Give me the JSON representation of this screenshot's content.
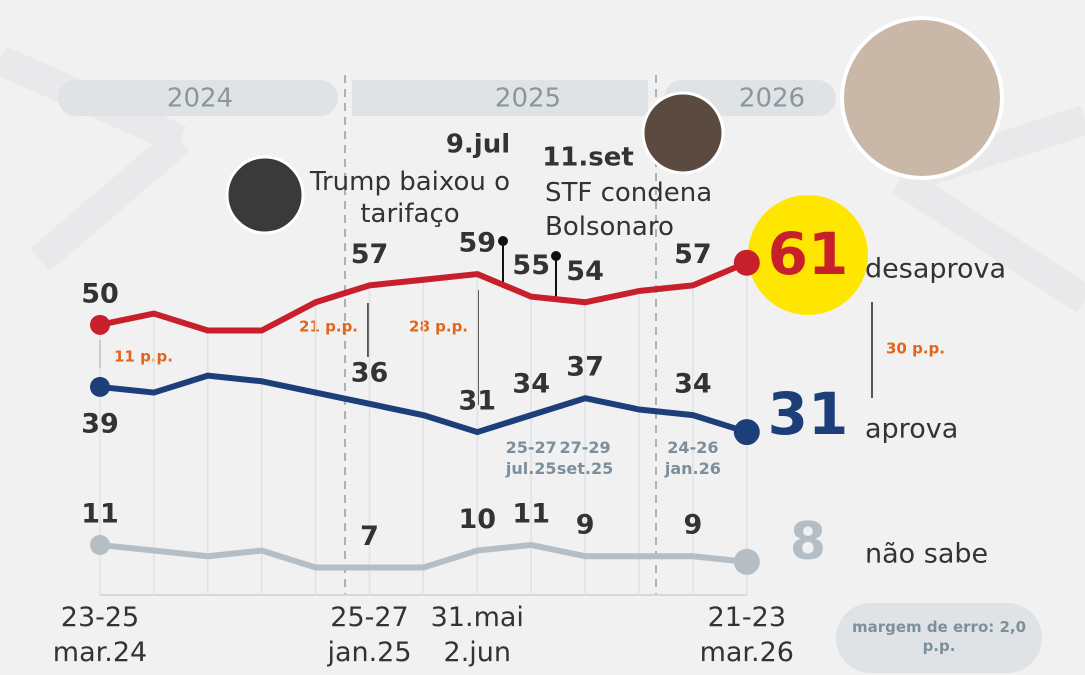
{
  "chart_data": {
    "type": "line",
    "categories": [
      "23-25 mar.24",
      null,
      null,
      null,
      null,
      "25-27 jan.25",
      null,
      "31.mai 2.jun",
      "25-27 jul.25",
      "27-29 set.25",
      null,
      "24-26 jan.26",
      "21-23 mar.26"
    ],
    "series": [
      {
        "name": "desaprova",
        "color": "#c8202a",
        "values": [
          50,
          52,
          49,
          49,
          54,
          57,
          58,
          59,
          55,
          54,
          56,
          57,
          61
        ]
      },
      {
        "name": "aprova",
        "color": "#1c3f7a",
        "values": [
          39,
          38,
          41,
          40,
          38,
          36,
          34,
          31,
          34,
          37,
          35,
          34,
          31
        ]
      },
      {
        "name": "não sabe",
        "color": "#b5bec4",
        "values": [
          11,
          10,
          9,
          10,
          7,
          7,
          7,
          10,
          11,
          9,
          9,
          9,
          8
        ]
      }
    ],
    "ylim": [
      0,
      70
    ],
    "periods": [
      "2024",
      "2025",
      "2026"
    ],
    "events": [
      {
        "date": "9.jul",
        "text": "Trump baixou o tarifaço"
      },
      {
        "date": "11.set",
        "text": "STF condena Bolsonaro"
      }
    ],
    "gap_labels": [
      "11 p.p.",
      "21 p.p.",
      "28 p.p.",
      "30 p.p."
    ],
    "note": "margem de erro: 2,0 p.p."
  }
}
